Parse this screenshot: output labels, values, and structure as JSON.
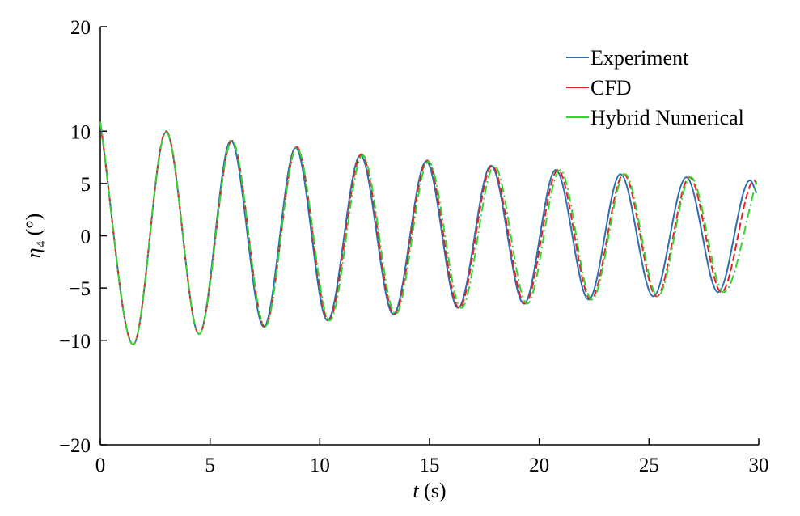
{
  "chart_data": {
    "type": "line",
    "title": "",
    "xlabel": {
      "var": "t",
      "unit": " (s)"
    },
    "ylabel": {
      "var": "η",
      "sub": "4",
      "unit": " (°)"
    },
    "xlim": [
      0,
      30
    ],
    "ylim": [
      -20,
      20
    ],
    "xticks": [
      0,
      5,
      10,
      15,
      20,
      25,
      30
    ],
    "yticks": [
      20,
      10,
      5,
      0,
      -5,
      -10,
      -20
    ],
    "xtick_labels": [
      "0",
      "5",
      "10",
      "15",
      "20",
      "25",
      "30"
    ],
    "ytick_labels": [
      "20",
      "10",
      "5",
      "0",
      "−5",
      "−10",
      "−20"
    ],
    "grid": false,
    "legend_position": "top-right",
    "series": [
      {
        "name": "Experiment",
        "color": "#2a6fb0",
        "dash": "solid",
        "x": [
          0.0,
          1.5,
          3.0,
          4.5,
          5.95,
          7.45,
          8.9,
          10.35,
          11.85,
          13.35,
          14.85,
          16.3,
          17.8,
          19.3,
          20.75,
          22.25,
          23.7,
          25.2,
          26.7,
          28.15,
          29.6,
          29.9
        ],
        "y": [
          10.8,
          -10.4,
          9.9,
          -9.4,
          9.1,
          -8.7,
          8.4,
          -8.1,
          7.7,
          -7.5,
          7.1,
          -6.9,
          6.7,
          -6.5,
          6.3,
          -6.1,
          5.9,
          -5.8,
          5.6,
          -5.4,
          5.3,
          4.1
        ]
      },
      {
        "name": "CFD",
        "color": "#e8202a",
        "dash": "dashed",
        "x": [
          0.0,
          1.5,
          3.0,
          4.5,
          6.0,
          7.5,
          8.95,
          10.4,
          11.9,
          13.4,
          14.9,
          16.35,
          17.85,
          19.35,
          20.85,
          22.35,
          23.85,
          25.35,
          26.85,
          28.3,
          29.8,
          29.9
        ],
        "y": [
          10.8,
          -10.4,
          10.0,
          -9.4,
          9.1,
          -8.7,
          8.5,
          -8.1,
          7.8,
          -7.5,
          7.2,
          -6.9,
          6.7,
          -6.5,
          6.3,
          -6.1,
          5.9,
          -5.8,
          5.6,
          -5.4,
          5.3,
          4.9
        ]
      },
      {
        "name": "Hybrid Numerical",
        "color": "#2ed82e",
        "dash": "dashdot",
        "x": [
          0.0,
          1.5,
          3.0,
          4.5,
          6.0,
          7.5,
          8.95,
          10.45,
          11.95,
          13.45,
          14.95,
          16.45,
          17.95,
          19.45,
          20.95,
          22.4,
          23.9,
          25.4,
          26.9,
          28.4,
          29.9
        ],
        "y": [
          10.9,
          -10.4,
          9.9,
          -9.4,
          9.1,
          -8.7,
          8.4,
          -8.1,
          7.7,
          -7.5,
          7.1,
          -6.9,
          6.7,
          -6.5,
          6.3,
          -6.1,
          5.9,
          -5.8,
          5.6,
          -5.4,
          5.2
        ]
      }
    ]
  }
}
